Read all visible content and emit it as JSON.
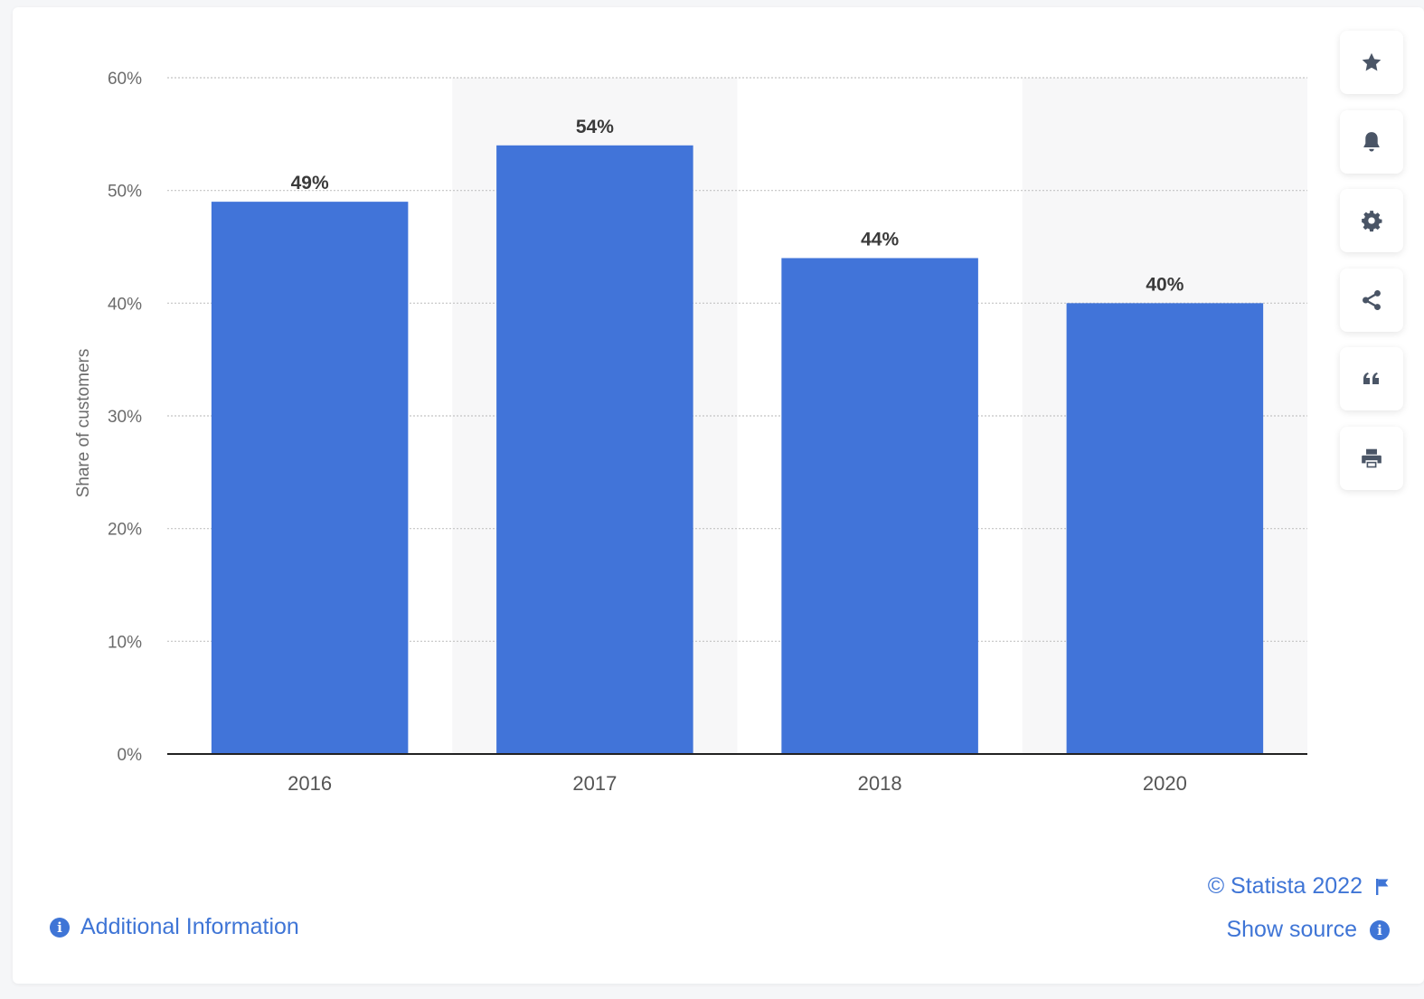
{
  "colors": {
    "bar": "#4174d9",
    "band": "#f7f7f8",
    "grid": "#c4c4c4",
    "axis_text": "#6b6b6b",
    "value_label": "#3a3a3a",
    "link": "#3f75d6",
    "icon": "#4a5566"
  },
  "toolbar": {
    "buttons": [
      {
        "icon": "star-icon",
        "name": "favorite-button"
      },
      {
        "icon": "bell-icon",
        "name": "notification-button"
      },
      {
        "icon": "gear-icon",
        "name": "settings-button"
      },
      {
        "icon": "share-icon",
        "name": "share-button"
      },
      {
        "icon": "quote-icon",
        "name": "cite-button"
      },
      {
        "icon": "printer-icon",
        "name": "print-button"
      }
    ]
  },
  "footer": {
    "additional_info": "Additional Information",
    "copyright": "© Statista 2022",
    "show_source": "Show source"
  },
  "chart_data": {
    "type": "bar",
    "categories": [
      "2016",
      "2017",
      "2018",
      "2020"
    ],
    "values": [
      49,
      54,
      44,
      40
    ],
    "value_labels": [
      "49%",
      "54%",
      "44%",
      "40%"
    ],
    "ylabel": "Share of customers",
    "xlabel": "",
    "ylim": [
      0,
      60
    ],
    "yticks": [
      0,
      10,
      20,
      30,
      40,
      50,
      60
    ],
    "ytick_labels": [
      "0%",
      "10%",
      "20%",
      "30%",
      "40%",
      "50%",
      "60%"
    ],
    "grid": true,
    "legend": "none"
  }
}
